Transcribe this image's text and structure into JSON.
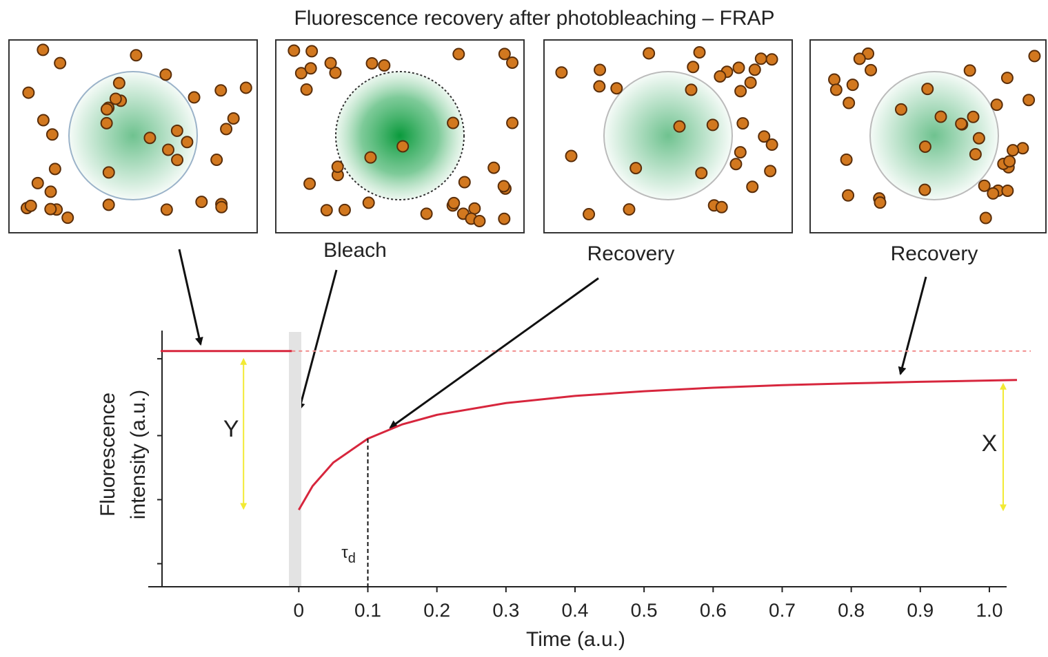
{
  "chart_data": {
    "type": "line",
    "title": "Fluorescence recovery after photobleaching – FRAP",
    "panel_labels": [
      "Bleach",
      "Recovery",
      "Recovery"
    ],
    "xlabel": "Time (a.u.)",
    "ylabel": [
      "Fluorescence",
      "intensity (a.u.)"
    ],
    "xlim": [
      -0.218,
      1.025
    ],
    "ylim": [
      0,
      1
    ],
    "xticks": [
      0,
      0.1,
      0.2,
      0.3,
      0.4,
      0.5,
      0.6,
      0.7,
      0.8,
      0.9,
      {
        "value": 1,
        "label": "1.0"
      }
    ],
    "yticks": [
      0.09,
      0.34,
      0.59,
      0.89
    ],
    "series": [
      {
        "color": "#d7263d",
        "x": [
          -0.2,
          -0.01
        ],
        "values": [
          0.92,
          0.92
        ]
      },
      {
        "color": "#d7263d",
        "x": [
          0,
          0.02,
          0.05,
          0.1,
          0.15,
          0.2,
          0.3,
          0.4,
          0.5,
          0.6,
          0.7,
          0.8,
          0.9,
          1.04
        ],
        "values": [
          0.3,
          0.393,
          0.485,
          0.578,
          0.634,
          0.671,
          0.717,
          0.745,
          0.763,
          0.777,
          0.787,
          0.794,
          0.8,
          0.807
        ]
      }
    ],
    "annotations": [
      {
        "text": "Y",
        "x": -0.08
      },
      {
        "text": "X",
        "x": 1.02
      },
      {
        "text": "τ",
        "subscript": "d",
        "x": 0.1
      }
    ]
  }
}
